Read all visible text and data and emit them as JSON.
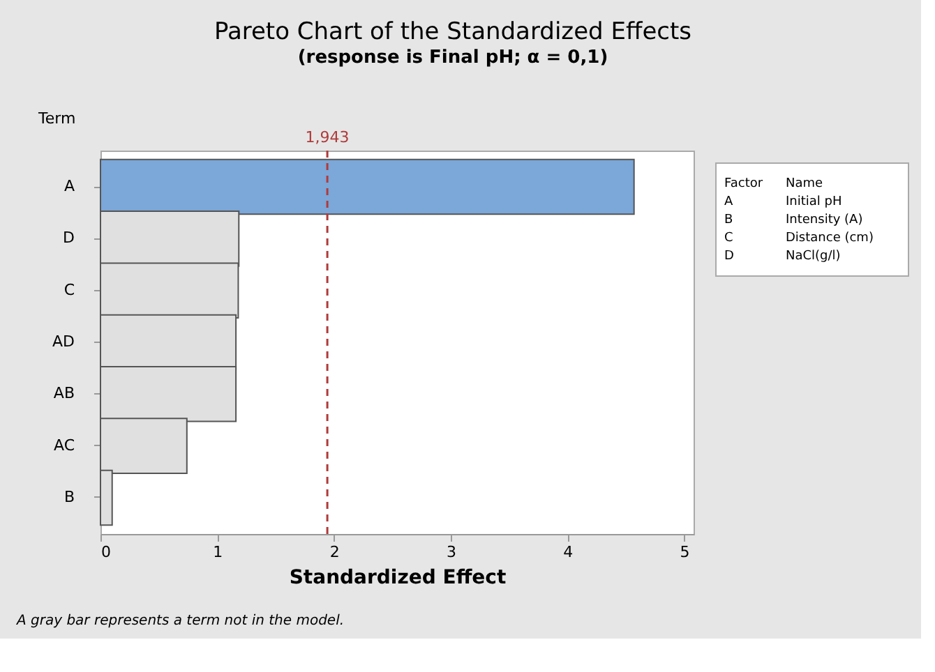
{
  "chart_data": {
    "type": "bar",
    "orientation": "horizontal",
    "title": "Pareto Chart of the Standardized Effects",
    "subtitle": "(response is Final pH; α = 0,1)",
    "xlabel": "Standardized Effect",
    "ylabel": "Term",
    "categories": [
      "A",
      "D",
      "C",
      "AD",
      "AB",
      "AC",
      "B"
    ],
    "values": [
      4.57,
      1.185,
      1.18,
      1.16,
      1.16,
      0.74,
      0.1
    ],
    "colors": [
      "#7ba7d9",
      "#e0e0e0",
      "#e0e0e0",
      "#e0e0e0",
      "#e0e0e0",
      "#e0e0e0",
      "#e0e0e0"
    ],
    "xlim": [
      0,
      5.08
    ],
    "xticks": [
      0,
      1,
      2,
      3,
      4,
      5
    ],
    "grid": false,
    "legend": false,
    "ref_lines": [
      {
        "axis": "x",
        "value": 1.943,
        "label": "1,943",
        "color": "#b03a3a",
        "line_style": "dashed"
      }
    ],
    "annotations": [
      "A gray bar represents a term not in the model.",
      "Factor",
      "Name",
      "A",
      "Initial pH",
      "B",
      "Intensity (A)",
      "C",
      "Distance (cm)",
      "D",
      "NaCl(g/l)"
    ]
  }
}
